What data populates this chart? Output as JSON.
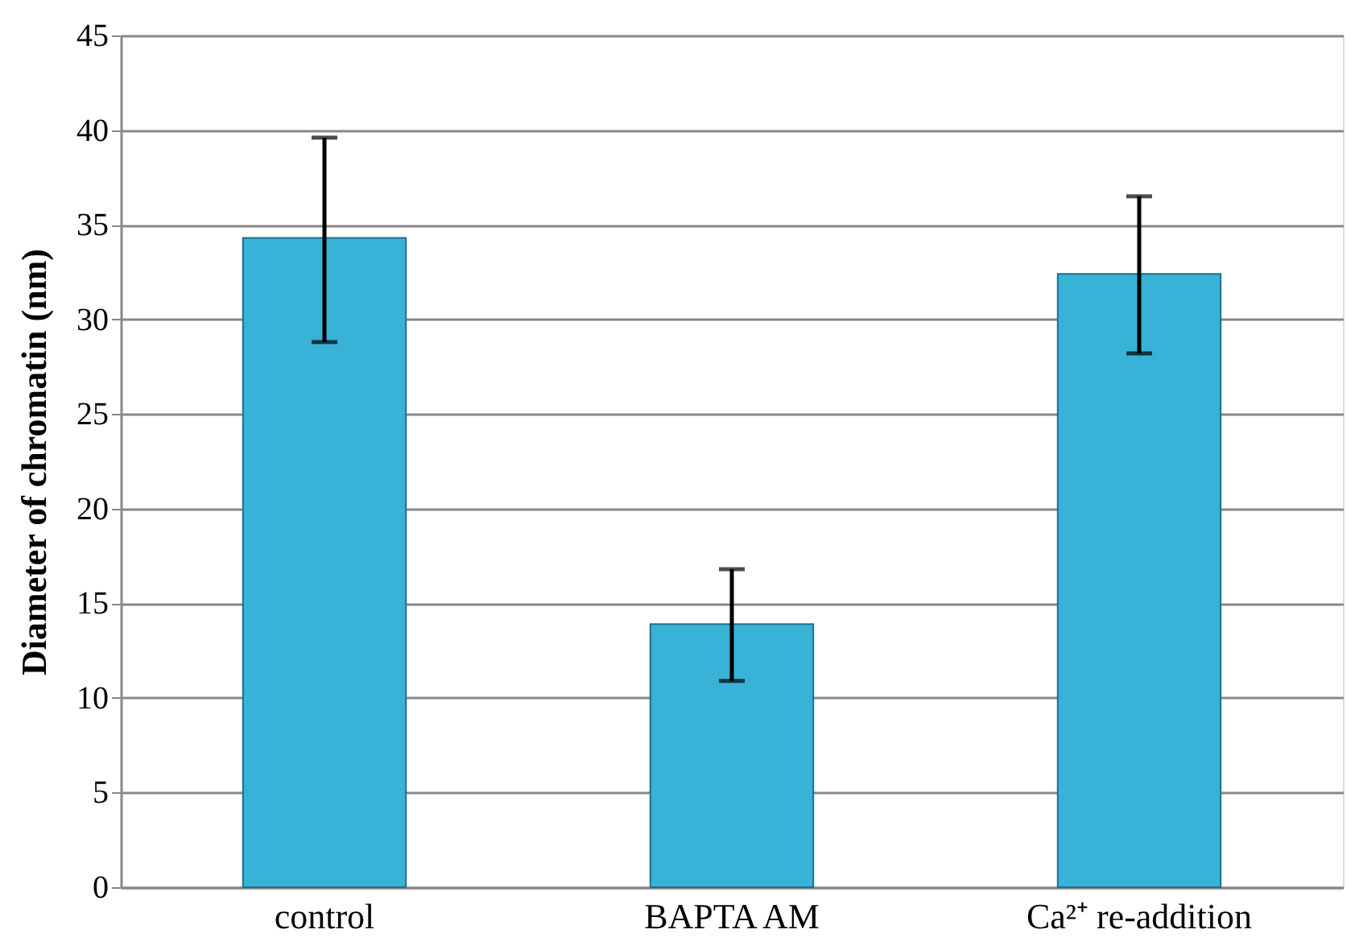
{
  "chart_data": {
    "type": "bar",
    "ylabel": "Diameter of chromatin (nm)",
    "categories": [
      "control",
      "BAPTA AM",
      "Ca²⁺ re-addition"
    ],
    "values": [
      34.3,
      13.9,
      32.4
    ],
    "errors": [
      [
        28.8,
        39.6
      ],
      [
        10.9,
        16.8
      ],
      [
        28.2,
        36.5
      ]
    ],
    "color": "#38b2d6",
    "ylim": [
      0,
      45
    ],
    "yticks": [
      0,
      5,
      10,
      15,
      20,
      25,
      30,
      35,
      40,
      45
    ],
    "grid": "y"
  }
}
